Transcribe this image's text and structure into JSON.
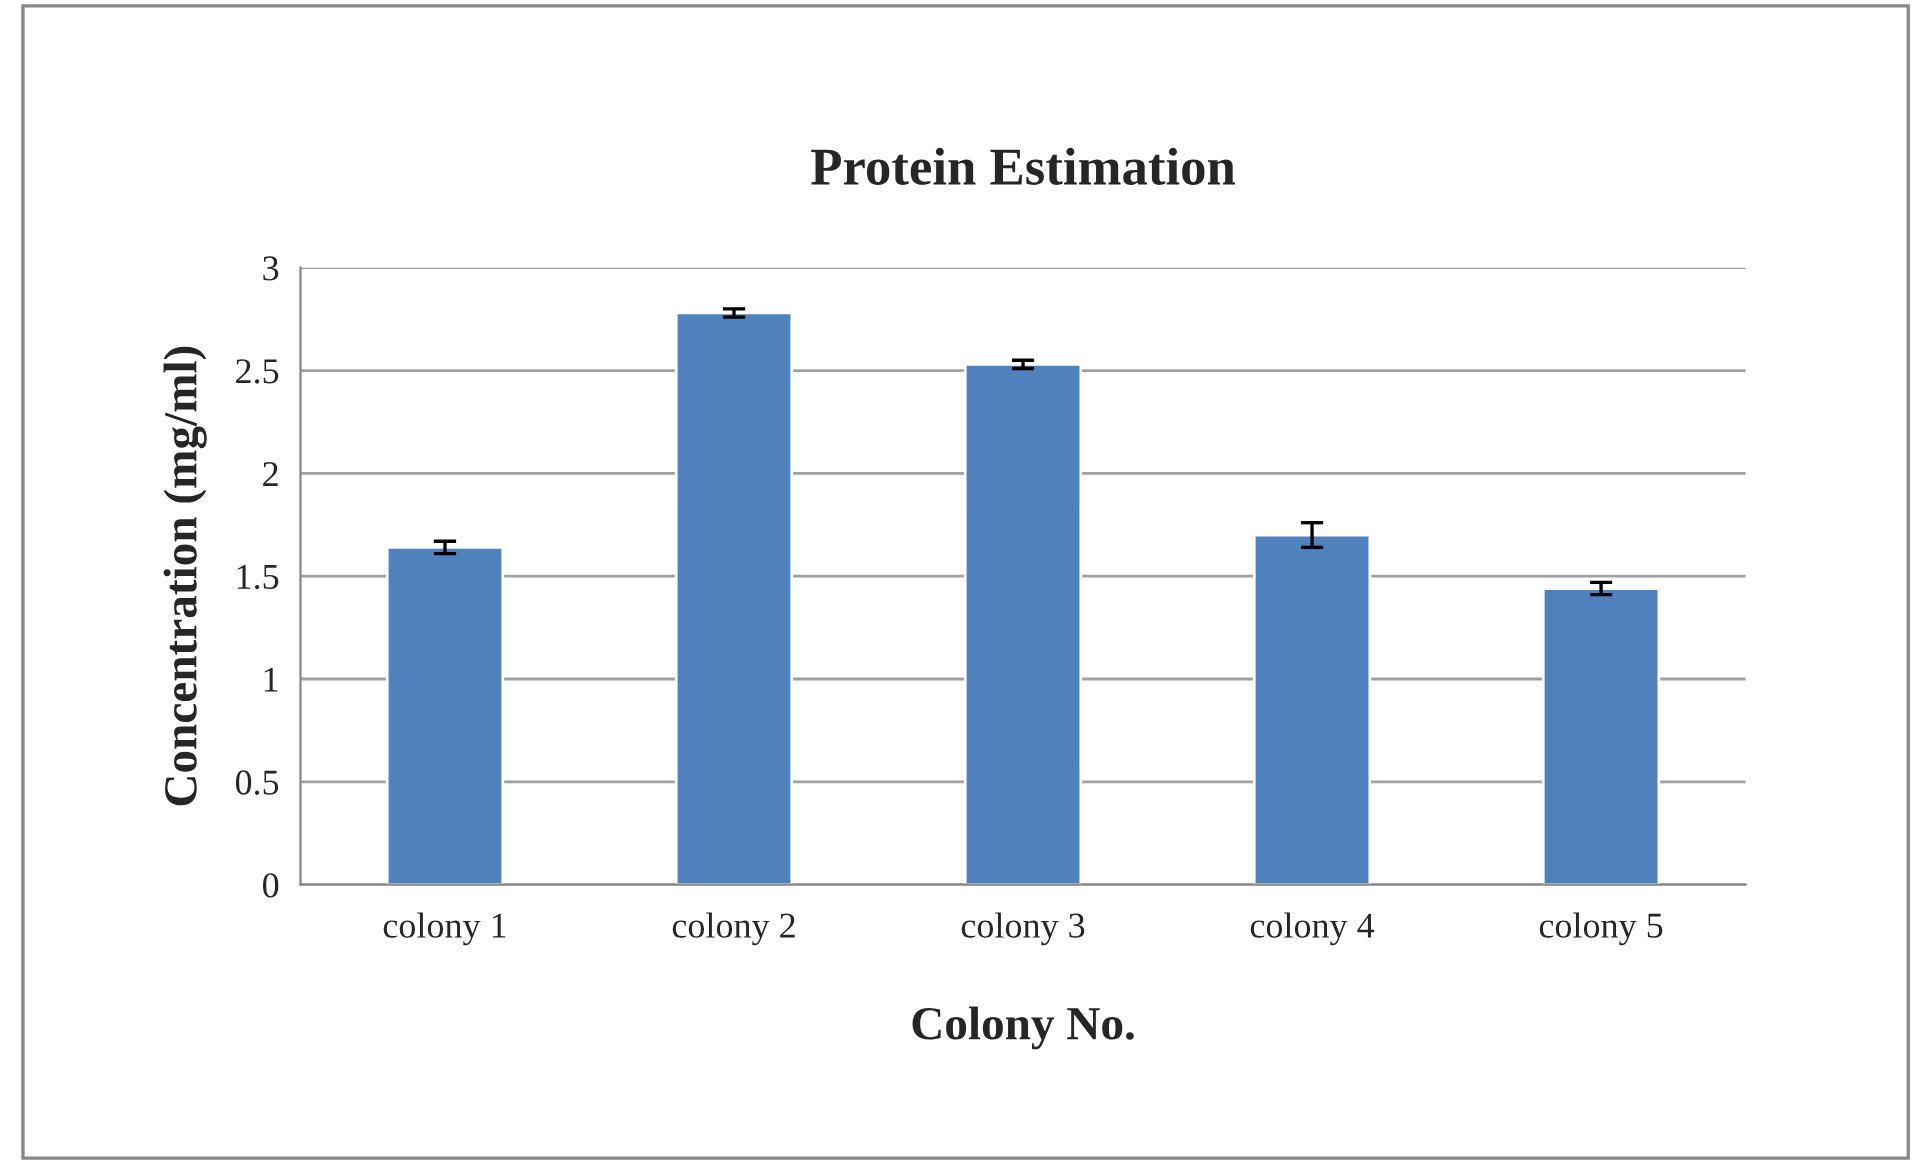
{
  "chart_data": {
    "type": "bar",
    "title": "Protein Estimation",
    "xlabel": "Colony No.",
    "ylabel": "Concentration (mg/ml)",
    "categories": [
      "colony 1",
      "colony 2",
      "colony 3",
      "colony 4",
      "colony 5"
    ],
    "values": [
      1.64,
      2.78,
      2.53,
      1.7,
      1.44
    ],
    "errors": [
      0.03,
      0.02,
      0.02,
      0.06,
      0.03
    ],
    "color": "#4f81bd",
    "ylim": [
      0,
      3
    ],
    "yticks": [
      0,
      0.5,
      1,
      1.5,
      2,
      2.5,
      3
    ],
    "grid": "y",
    "legend": false
  }
}
